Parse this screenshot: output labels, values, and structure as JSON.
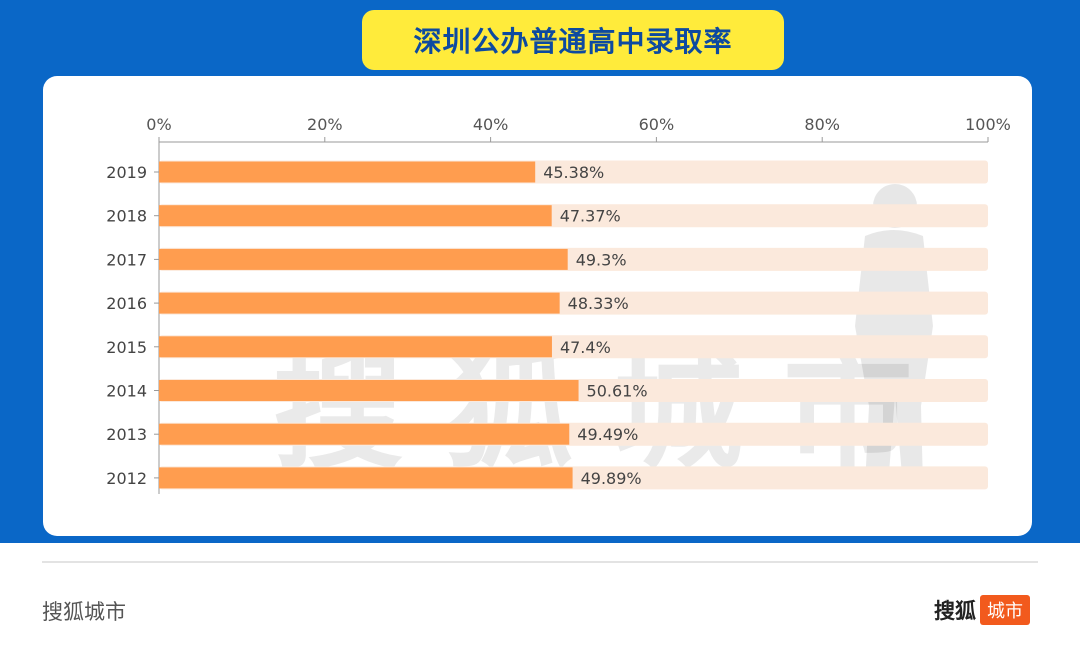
{
  "title": "深圳公办普通高中录取率",
  "watermark": "搜狐城市",
  "footer": {
    "left": "搜狐城市",
    "brand": "搜狐",
    "badge": "城市"
  },
  "colors": {
    "bar": "#ff9d4f",
    "track": "#fbe9dc",
    "panel": "#0a67c7",
    "title_bg": "#ffeb3b",
    "title_text": "#0d4aa0",
    "badge": "#f25a1d"
  },
  "chart_data": {
    "type": "bar",
    "orientation": "horizontal",
    "categories": [
      "2019",
      "2018",
      "2017",
      "2016",
      "2015",
      "2014",
      "2013",
      "2012"
    ],
    "values": [
      45.38,
      47.37,
      49.3,
      48.33,
      47.4,
      50.61,
      49.49,
      49.89
    ],
    "value_labels": [
      "45.38%",
      "47.37%",
      "49.3%",
      "48.33%",
      "47.4%",
      "50.61%",
      "49.49%",
      "49.89%"
    ],
    "xlim": [
      0,
      100
    ],
    "x_ticks": [
      0,
      20,
      40,
      60,
      80,
      100
    ],
    "x_tick_labels": [
      "0%",
      "20%",
      "40%",
      "60%",
      "80%",
      "100%"
    ],
    "axis_position": "top",
    "grid": false
  }
}
